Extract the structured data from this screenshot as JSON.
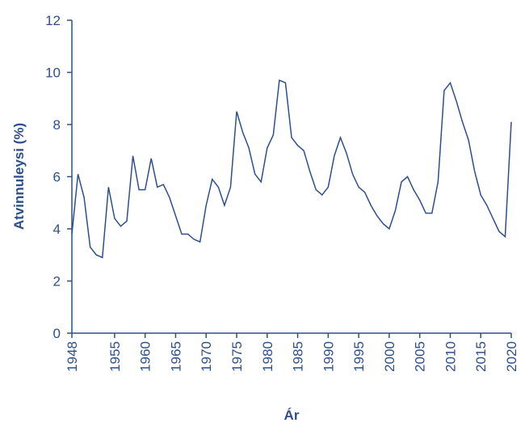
{
  "chart_data": {
    "type": "line",
    "x_label": "Ár",
    "y_label": "Atvinnuleysi (%)",
    "x": [
      1948,
      1949,
      1950,
      1951,
      1952,
      1953,
      1954,
      1955,
      1956,
      1957,
      1958,
      1959,
      1960,
      1961,
      1962,
      1963,
      1964,
      1965,
      1966,
      1967,
      1968,
      1969,
      1970,
      1971,
      1972,
      1973,
      1974,
      1975,
      1976,
      1977,
      1978,
      1979,
      1980,
      1981,
      1982,
      1983,
      1984,
      1985,
      1986,
      1987,
      1988,
      1989,
      1990,
      1991,
      1992,
      1993,
      1994,
      1995,
      1996,
      1997,
      1998,
      1999,
      2000,
      2001,
      2002,
      2003,
      2004,
      2005,
      2006,
      2007,
      2008,
      2009,
      2010,
      2011,
      2012,
      2013,
      2014,
      2015,
      2016,
      2017,
      2018,
      2019,
      2020
    ],
    "series": [
      {
        "color": "#2d4f8c",
        "values": [
          3.8,
          6.1,
          5.2,
          3.3,
          3.0,
          2.9,
          5.6,
          4.4,
          4.1,
          4.3,
          6.8,
          5.5,
          5.5,
          6.7,
          5.6,
          5.7,
          5.2,
          4.5,
          3.8,
          3.8,
          3.6,
          3.5,
          4.9,
          5.9,
          5.6,
          4.9,
          5.6,
          8.5,
          7.7,
          7.1,
          6.1,
          5.8,
          7.1,
          7.6,
          9.7,
          9.6,
          7.5,
          7.2,
          7.0,
          6.2,
          5.5,
          5.3,
          5.6,
          6.8,
          7.5,
          6.9,
          6.1,
          5.6,
          5.4,
          4.9,
          4.5,
          4.2,
          4.0,
          4.7,
          5.8,
          6.0,
          5.5,
          5.1,
          4.6,
          4.6,
          5.8,
          9.3,
          9.6,
          8.9,
          8.1,
          7.4,
          6.2,
          5.3,
          4.9,
          4.4,
          3.9,
          3.7,
          8.1
        ]
      }
    ],
    "xlim": [
      1948,
      2020
    ],
    "xticks": [
      1948,
      1955,
      1960,
      1965,
      1970,
      1975,
      1980,
      1985,
      1990,
      1995,
      2000,
      2005,
      2010,
      2015,
      2020
    ],
    "ylim": [
      0,
      12
    ],
    "yticks": [
      0,
      2,
      4,
      6,
      8,
      10,
      12
    ]
  }
}
